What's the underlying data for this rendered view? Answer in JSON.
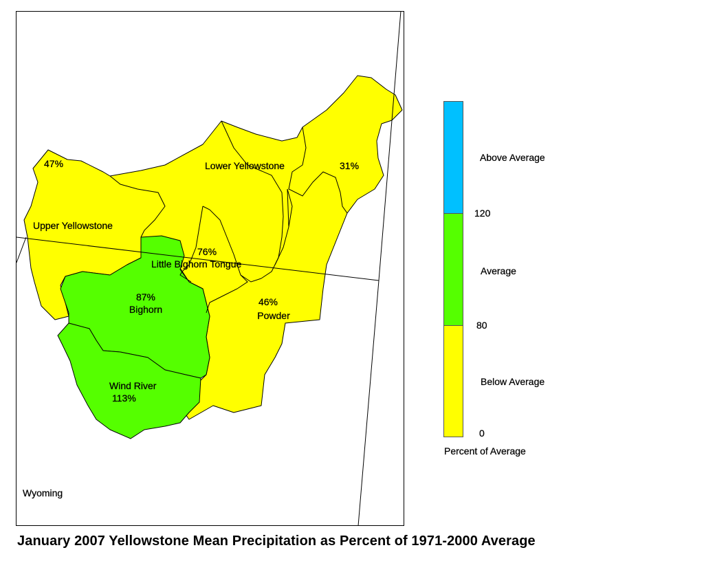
{
  "title": "January 2007 Yellowstone Mean Precipitation as Percent of 1971-2000 Average",
  "state_label": "Wyoming",
  "colors": {
    "below": "#ffff00",
    "average": "#55ff00",
    "above": "#00c0ff"
  },
  "basins": [
    {
      "name": "Upper Yellowstone",
      "percent": "47%",
      "category": "below"
    },
    {
      "name": "Lower Yellowstone",
      "percent": "31%",
      "category": "below"
    },
    {
      "name": "Little Bighorn Tongue",
      "percent": "76%",
      "category": "below"
    },
    {
      "name": "Bighorn",
      "percent": "87%",
      "category": "average"
    },
    {
      "name": "Powder",
      "percent": "46%",
      "category": "below"
    },
    {
      "name": "Wind River",
      "percent": "113%",
      "category": "average"
    }
  ],
  "legend": {
    "title": "Percent of Average",
    "categories": {
      "above": "Above Average",
      "average": "Average",
      "below": "Below Average"
    },
    "breaks": [
      "0",
      "80",
      "120"
    ]
  }
}
